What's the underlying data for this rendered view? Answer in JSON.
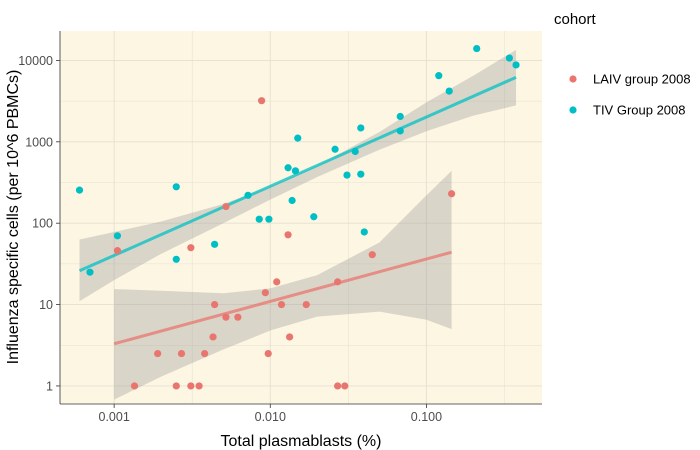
{
  "chart_data": {
    "type": "scatter",
    "xlabel": "Total plasmablasts (%)",
    "ylabel": "Influenza specific cells (per 10^6 PBMCs)",
    "x_scale": "log10",
    "y_scale": "log10",
    "xlim": [
      0.00045,
      0.55
    ],
    "ylim": [
      0.6,
      23000
    ],
    "x_ticks": [
      0.001,
      0.01,
      0.1
    ],
    "x_tick_labels": [
      "0.001",
      "0.010",
      "0.100"
    ],
    "y_ticks": [
      1,
      10,
      100,
      1000,
      10000
    ],
    "y_tick_labels": [
      "1",
      "10",
      "100",
      "1000",
      "10000"
    ],
    "grid": true,
    "panel_background": "#fdf6e3",
    "legend": {
      "title": "cohort",
      "position": "right"
    },
    "series": [
      {
        "name": "LAIV group 2008",
        "color": "#e8766f",
        "points": [
          {
            "x": 0.00105,
            "y": 46
          },
          {
            "x": 0.00135,
            "y": 1
          },
          {
            "x": 0.0019,
            "y": 2.5
          },
          {
            "x": 0.0025,
            "y": 1
          },
          {
            "x": 0.0027,
            "y": 2.5
          },
          {
            "x": 0.0031,
            "y": 50
          },
          {
            "x": 0.0031,
            "y": 1
          },
          {
            "x": 0.0035,
            "y": 1
          },
          {
            "x": 0.0038,
            "y": 2.5
          },
          {
            "x": 0.0043,
            "y": 4
          },
          {
            "x": 0.0044,
            "y": 10
          },
          {
            "x": 0.0052,
            "y": 7
          },
          {
            "x": 0.0052,
            "y": 160
          },
          {
            "x": 0.0062,
            "y": 7
          },
          {
            "x": 0.0088,
            "y": 3200
          },
          {
            "x": 0.0093,
            "y": 14
          },
          {
            "x": 0.0097,
            "y": 2.5
          },
          {
            "x": 0.011,
            "y": 19
          },
          {
            "x": 0.0118,
            "y": 10
          },
          {
            "x": 0.013,
            "y": 72
          },
          {
            "x": 0.0133,
            "y": 4
          },
          {
            "x": 0.017,
            "y": 10
          },
          {
            "x": 0.027,
            "y": 19
          },
          {
            "x": 0.027,
            "y": 1
          },
          {
            "x": 0.03,
            "y": 1
          },
          {
            "x": 0.045,
            "y": 41
          },
          {
            "x": 0.145,
            "y": 230
          }
        ],
        "fit": {
          "x": [
            0.001,
            0.145
          ],
          "y": [
            3.3,
            44
          ]
        },
        "ci_band": {
          "x": [
            0.001,
            0.002,
            0.005,
            0.01,
            0.02,
            0.05,
            0.1,
            0.145
          ],
          "lower": [
            0.68,
            1.3,
            2.8,
            4.8,
            7.1,
            8.2,
            6.5,
            5.0
          ],
          "upper": [
            15.5,
            14.8,
            13.8,
            15.8,
            23,
            58,
            220,
            440
          ]
        }
      },
      {
        "name": "TIV Group 2008",
        "color": "#00bfc4",
        "points": [
          {
            "x": 0.0006,
            "y": 255
          },
          {
            "x": 0.0007,
            "y": 25
          },
          {
            "x": 0.00105,
            "y": 70
          },
          {
            "x": 0.0025,
            "y": 280
          },
          {
            "x": 0.0025,
            "y": 36
          },
          {
            "x": 0.0044,
            "y": 55
          },
          {
            "x": 0.0072,
            "y": 220
          },
          {
            "x": 0.0085,
            "y": 112
          },
          {
            "x": 0.0098,
            "y": 112
          },
          {
            "x": 0.013,
            "y": 480
          },
          {
            "x": 0.0138,
            "y": 190
          },
          {
            "x": 0.0145,
            "y": 440
          },
          {
            "x": 0.015,
            "y": 1110
          },
          {
            "x": 0.019,
            "y": 120
          },
          {
            "x": 0.026,
            "y": 810
          },
          {
            "x": 0.031,
            "y": 390
          },
          {
            "x": 0.035,
            "y": 760
          },
          {
            "x": 0.038,
            "y": 1480
          },
          {
            "x": 0.038,
            "y": 400
          },
          {
            "x": 0.04,
            "y": 78
          },
          {
            "x": 0.068,
            "y": 2050
          },
          {
            "x": 0.068,
            "y": 1360
          },
          {
            "x": 0.12,
            "y": 6500
          },
          {
            "x": 0.14,
            "y": 4200
          },
          {
            "x": 0.21,
            "y": 14000
          },
          {
            "x": 0.34,
            "y": 10700
          },
          {
            "x": 0.375,
            "y": 8800
          }
        ],
        "fit": {
          "x": [
            0.0006,
            0.375
          ],
          "y": [
            26,
            6200
          ]
        },
        "ci_band": {
          "x": [
            0.0006,
            0.001,
            0.002,
            0.005,
            0.01,
            0.02,
            0.05,
            0.1,
            0.2,
            0.375
          ],
          "lower": [
            11,
            20,
            42,
            100,
            195,
            370,
            800,
            1350,
            2100,
            2800
          ],
          "upper": [
            63,
            78,
            105,
            172,
            282,
            510,
            1320,
            3050,
            6500,
            13500
          ]
        }
      }
    ]
  }
}
